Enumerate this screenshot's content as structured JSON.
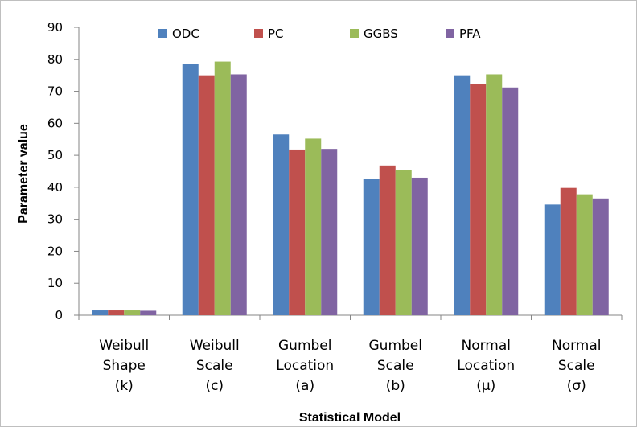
{
  "chart_data": {
    "type": "bar",
    "title": "",
    "xlabel": "Statistical Model",
    "ylabel": "Parameter value",
    "ylim": [
      0,
      90
    ],
    "yticks": [
      0,
      10,
      20,
      30,
      40,
      50,
      60,
      70,
      80,
      90
    ],
    "grid": false,
    "legend_position": "top",
    "categories": [
      [
        "Weibull",
        "Shape",
        "(k)"
      ],
      [
        "Weibull",
        "Scale",
        "(c)"
      ],
      [
        "Gumbel",
        "Location",
        "(a)"
      ],
      [
        "Gumbel",
        "Scale",
        "(b)"
      ],
      [
        "Normal",
        "Location",
        "(μ)"
      ],
      [
        "Normal",
        "Scale",
        "(σ)"
      ]
    ],
    "series": [
      {
        "name": "ODC",
        "color": "#4f81bd",
        "values": [
          1.5,
          78.5,
          56.5,
          42.7,
          75.0,
          34.6
        ]
      },
      {
        "name": "PC",
        "color": "#c0504d",
        "values": [
          1.5,
          75.0,
          51.8,
          46.8,
          72.3,
          39.8
        ]
      },
      {
        "name": "GGBS",
        "color": "#9bbb59",
        "values": [
          1.5,
          79.3,
          55.2,
          45.5,
          75.3,
          37.8
        ]
      },
      {
        "name": "PFA",
        "color": "#8064a2",
        "values": [
          1.4,
          75.3,
          52.0,
          43.0,
          71.2,
          36.5
        ]
      }
    ]
  }
}
